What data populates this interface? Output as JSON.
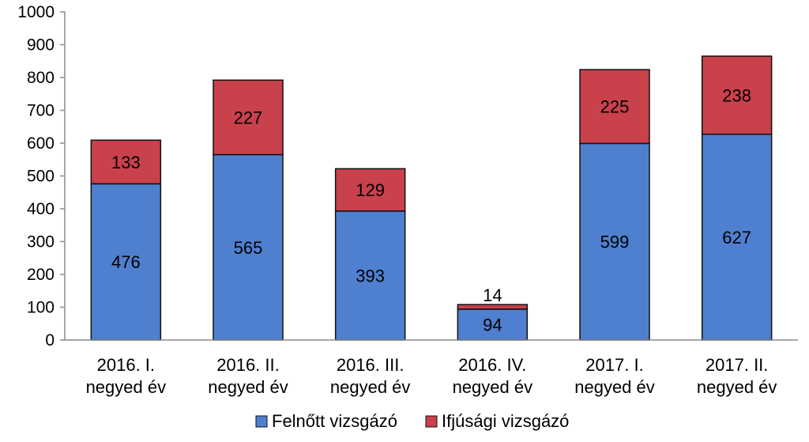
{
  "chart_data": {
    "type": "bar",
    "stacked": true,
    "categories": [
      [
        "2016. I.",
        "negyed év"
      ],
      [
        "2016. II.",
        "negyed év"
      ],
      [
        "2016. III.",
        "negyed év"
      ],
      [
        "2016. IV.",
        "negyed év"
      ],
      [
        "2017. I.",
        "negyed év"
      ],
      [
        "2017. II.",
        "negyed év"
      ]
    ],
    "series": [
      {
        "name": "Felnőtt vizsgázó",
        "color": "#4f7fcf",
        "values": [
          476,
          565,
          393,
          94,
          599,
          627
        ]
      },
      {
        "name": "Ifjúsági vizsgázó",
        "color": "#c8414b",
        "values": [
          133,
          227,
          129,
          14,
          225,
          238
        ]
      }
    ],
    "yticks": [
      0,
      100,
      200,
      300,
      400,
      500,
      600,
      700,
      800,
      900,
      1000
    ],
    "ylim": [
      0,
      1000
    ],
    "grid": false,
    "legend_position": "bottom"
  }
}
